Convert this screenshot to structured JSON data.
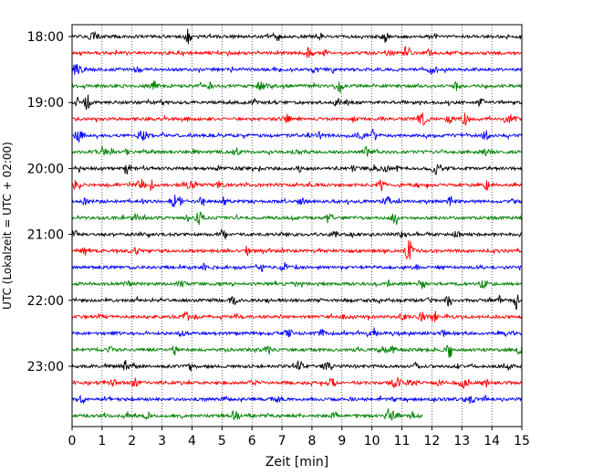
{
  "chart_data": {
    "type": "line",
    "title": "",
    "xlabel": "Zeit  [min]",
    "ylabel": "UTC (Lokalzeit = UTC + 02:00)",
    "xlim": [
      0,
      15
    ],
    "x_ticks": [
      "0",
      "1",
      "2",
      "3",
      "4",
      "5",
      "6",
      "7",
      "8",
      "9",
      "10",
      "11",
      "12",
      "13",
      "14",
      "15"
    ],
    "y_ticks": [
      "18:00",
      "19:00",
      "20:00",
      "21:00",
      "22:00",
      "23:00"
    ],
    "grid": "vertical dotted",
    "trace_interval_min": 15,
    "colors": [
      "#000000",
      "#ff0000",
      "#0000ff",
      "#008000"
    ],
    "series": [
      {
        "start": "18:00",
        "color": "#000000",
        "end_min": 15
      },
      {
        "start": "18:15",
        "color": "#ff0000",
        "end_min": 15
      },
      {
        "start": "18:30",
        "color": "#0000ff",
        "end_min": 15
      },
      {
        "start": "18:45",
        "color": "#008000",
        "end_min": 15
      },
      {
        "start": "19:00",
        "color": "#000000",
        "end_min": 15
      },
      {
        "start": "19:15",
        "color": "#ff0000",
        "end_min": 15
      },
      {
        "start": "19:30",
        "color": "#0000ff",
        "end_min": 15
      },
      {
        "start": "19:45",
        "color": "#008000",
        "end_min": 15
      },
      {
        "start": "20:00",
        "color": "#000000",
        "end_min": 15
      },
      {
        "start": "20:15",
        "color": "#ff0000",
        "end_min": 15
      },
      {
        "start": "20:30",
        "color": "#0000ff",
        "end_min": 15
      },
      {
        "start": "20:45",
        "color": "#008000",
        "end_min": 15
      },
      {
        "start": "21:00",
        "color": "#000000",
        "end_min": 15
      },
      {
        "start": "21:15",
        "color": "#ff0000",
        "end_min": 15
      },
      {
        "start": "21:30",
        "color": "#0000ff",
        "end_min": 15
      },
      {
        "start": "21:45",
        "color": "#008000",
        "end_min": 15
      },
      {
        "start": "22:00",
        "color": "#000000",
        "end_min": 15
      },
      {
        "start": "22:15",
        "color": "#ff0000",
        "end_min": 15
      },
      {
        "start": "22:30",
        "color": "#0000ff",
        "end_min": 15
      },
      {
        "start": "22:45",
        "color": "#008000",
        "end_min": 15
      },
      {
        "start": "23:00",
        "color": "#000000",
        "end_min": 15
      },
      {
        "start": "23:15",
        "color": "#ff0000",
        "end_min": 15
      },
      {
        "start": "23:30",
        "color": "#0000ff",
        "end_min": 15
      },
      {
        "start": "23:45",
        "color": "#008000",
        "end_min": 11.7
      }
    ]
  }
}
